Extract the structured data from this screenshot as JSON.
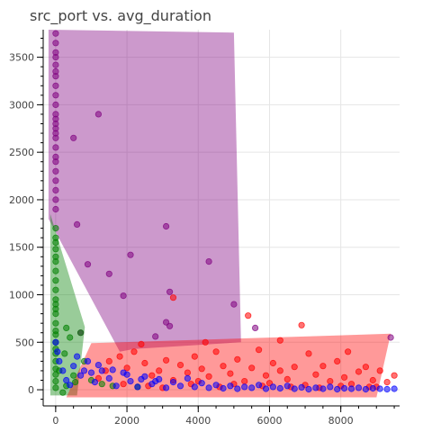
{
  "chart_data": {
    "type": "scatter",
    "title": "src_port vs. avg_duration",
    "xlabel": "",
    "ylabel": "",
    "xlim": [
      -350,
      9650
    ],
    "ylim": [
      -170,
      3790
    ],
    "x_ticks": [
      0,
      2000,
      4000,
      6000,
      8000
    ],
    "y_ticks": [
      0,
      500,
      1000,
      1500,
      2000,
      2500,
      3000,
      3500
    ],
    "grid": true,
    "legend": "none",
    "colors": {
      "purple": "#800080",
      "green": "#008000",
      "red": "#ff0000",
      "blue": "#0000ff"
    },
    "hulls": [
      {
        "color": "#800080",
        "points": [
          [
            -200,
            3790
          ],
          [
            5000,
            3760
          ],
          [
            5200,
            500
          ],
          [
            2200,
            430
          ],
          [
            1800,
            400
          ],
          [
            -200,
            1800
          ]
        ]
      },
      {
        "color": "#008000",
        "points": [
          [
            -150,
            1850
          ],
          [
            820,
            660
          ],
          [
            600,
            -60
          ],
          [
            -150,
            -60
          ]
        ]
      },
      {
        "color": "#ff0000",
        "points": [
          [
            1000,
            490
          ],
          [
            9400,
            590
          ],
          [
            9000,
            -80
          ],
          [
            300,
            -80
          ]
        ]
      }
    ],
    "series": [
      {
        "color": "#800080",
        "points": [
          [
            0,
            3750
          ],
          [
            0,
            3650
          ],
          [
            0,
            3550
          ],
          [
            0,
            3500
          ],
          [
            0,
            3420
          ],
          [
            0,
            3350
          ],
          [
            0,
            3300
          ],
          [
            0,
            3200
          ],
          [
            0,
            3100
          ],
          [
            0,
            3000
          ],
          [
            0,
            2900
          ],
          [
            0,
            2850
          ],
          [
            0,
            2800
          ],
          [
            0,
            2750
          ],
          [
            0,
            2700
          ],
          [
            0,
            2650
          ],
          [
            0,
            2550
          ],
          [
            0,
            2450
          ],
          [
            0,
            2400
          ],
          [
            0,
            2300
          ],
          [
            0,
            2200
          ],
          [
            0,
            2100
          ],
          [
            0,
            2000
          ],
          [
            0,
            1900
          ],
          [
            1200,
            2900
          ],
          [
            500,
            2650
          ],
          [
            600,
            1740
          ],
          [
            3100,
            1720
          ],
          [
            2100,
            1420
          ],
          [
            4300,
            1350
          ],
          [
            900,
            1320
          ],
          [
            1500,
            1220
          ],
          [
            3200,
            1030
          ],
          [
            1900,
            990
          ],
          [
            3100,
            710
          ],
          [
            3200,
            670
          ],
          [
            5000,
            900
          ],
          [
            5600,
            650
          ],
          [
            9400,
            550
          ],
          [
            700,
            600
          ],
          [
            2800,
            560
          ]
        ]
      },
      {
        "color": "#008000",
        "points": [
          [
            0,
            1700
          ],
          [
            0,
            1600
          ],
          [
            0,
            1550
          ],
          [
            0,
            1480
          ],
          [
            0,
            1400
          ],
          [
            0,
            1350
          ],
          [
            0,
            1250
          ],
          [
            0,
            1150
          ],
          [
            0,
            1050
          ],
          [
            0,
            950
          ],
          [
            0,
            900
          ],
          [
            0,
            850
          ],
          [
            0,
            800
          ],
          [
            0,
            700
          ],
          [
            0,
            620
          ],
          [
            0,
            580
          ],
          [
            0,
            500
          ],
          [
            0,
            430
          ],
          [
            0,
            380
          ],
          [
            0,
            300
          ],
          [
            0,
            220
          ],
          [
            0,
            160
          ],
          [
            0,
            90
          ],
          [
            0,
            20
          ],
          [
            300,
            650
          ],
          [
            700,
            600
          ],
          [
            400,
            550
          ],
          [
            250,
            380
          ],
          [
            100,
            200
          ],
          [
            500,
            150
          ],
          [
            800,
            300
          ],
          [
            300,
            40
          ],
          [
            200,
            -30
          ],
          [
            550,
            80
          ],
          [
            1000,
            100
          ],
          [
            1300,
            60
          ],
          [
            1600,
            40
          ],
          [
            2300,
            30
          ]
        ]
      },
      {
        "color": "#ff0000",
        "points": [
          [
            1500,
            300
          ],
          [
            1800,
            350
          ],
          [
            2000,
            230
          ],
          [
            2200,
            400
          ],
          [
            2500,
            280
          ],
          [
            2700,
            150
          ],
          [
            2900,
            200
          ],
          [
            3100,
            310
          ],
          [
            3300,
            100
          ],
          [
            3500,
            260
          ],
          [
            3700,
            180
          ],
          [
            3900,
            350
          ],
          [
            4100,
            220
          ],
          [
            4300,
            140
          ],
          [
            4500,
            400
          ],
          [
            4700,
            250
          ],
          [
            4900,
            170
          ],
          [
            5100,
            320
          ],
          [
            5300,
            90
          ],
          [
            5500,
            230
          ],
          [
            5700,
            420
          ],
          [
            5900,
            150
          ],
          [
            6100,
            280
          ],
          [
            6300,
            200
          ],
          [
            6500,
            110
          ],
          [
            6700,
            240
          ],
          [
            6900,
            680
          ],
          [
            7100,
            380
          ],
          [
            7300,
            160
          ],
          [
            7500,
            250
          ],
          [
            7700,
            90
          ],
          [
            7900,
            300
          ],
          [
            8100,
            130
          ],
          [
            8300,
            60
          ],
          [
            8500,
            190
          ],
          [
            8700,
            240
          ],
          [
            8900,
            100
          ],
          [
            9100,
            200
          ],
          [
            9300,
            80
          ],
          [
            9500,
            150
          ],
          [
            3300,
            970
          ],
          [
            5400,
            780
          ],
          [
            6300,
            520
          ],
          [
            4200,
            500
          ],
          [
            2400,
            480
          ],
          [
            8200,
            400
          ],
          [
            3800,
            60
          ],
          [
            4600,
            30
          ],
          [
            5800,
            40
          ],
          [
            6600,
            30
          ],
          [
            7400,
            20
          ],
          [
            8800,
            30
          ],
          [
            1900,
            60
          ],
          [
            2600,
            40
          ],
          [
            3000,
            20
          ],
          [
            4000,
            90
          ],
          [
            5000,
            60
          ],
          [
            6000,
            70
          ],
          [
            7000,
            50
          ],
          [
            8000,
            40
          ],
          [
            9000,
            30
          ],
          [
            1200,
            120
          ],
          [
            1400,
            200
          ]
        ]
      },
      {
        "color": "#0000ff",
        "points": [
          [
            0,
            500
          ],
          [
            50,
            400
          ],
          [
            100,
            300
          ],
          [
            200,
            200
          ],
          [
            300,
            100
          ],
          [
            400,
            50
          ],
          [
            500,
            250
          ],
          [
            700,
            150
          ],
          [
            900,
            300
          ],
          [
            1100,
            80
          ],
          [
            1300,
            200
          ],
          [
            1500,
            120
          ],
          [
            1700,
            40
          ],
          [
            1900,
            180
          ],
          [
            2100,
            90
          ],
          [
            2300,
            30
          ],
          [
            2500,
            140
          ],
          [
            2700,
            60
          ],
          [
            2900,
            110
          ],
          [
            3100,
            20
          ],
          [
            3300,
            80
          ],
          [
            3500,
            40
          ],
          [
            3700,
            120
          ],
          [
            3900,
            30
          ],
          [
            4100,
            70
          ],
          [
            4300,
            20
          ],
          [
            4500,
            50
          ],
          [
            4700,
            15
          ],
          [
            4900,
            40
          ],
          [
            5100,
            10
          ],
          [
            5300,
            30
          ],
          [
            5500,
            20
          ],
          [
            5700,
            50
          ],
          [
            5900,
            10
          ],
          [
            6100,
            30
          ],
          [
            6300,
            15
          ],
          [
            6500,
            40
          ],
          [
            6700,
            10
          ],
          [
            6900,
            25
          ],
          [
            7100,
            5
          ],
          [
            7300,
            20
          ],
          [
            7500,
            10
          ],
          [
            7700,
            30
          ],
          [
            7900,
            5
          ],
          [
            8100,
            15
          ],
          [
            8300,
            10
          ],
          [
            8500,
            20
          ],
          [
            8700,
            5
          ],
          [
            8900,
            15
          ],
          [
            9100,
            10
          ],
          [
            9300,
            5
          ],
          [
            9500,
            10
          ],
          [
            600,
            350
          ],
          [
            800,
            200
          ],
          [
            1000,
            180
          ],
          [
            1200,
            260
          ],
          [
            1600,
            210
          ],
          [
            2000,
            160
          ],
          [
            2400,
            110
          ],
          [
            2800,
            90
          ]
        ]
      }
    ]
  }
}
